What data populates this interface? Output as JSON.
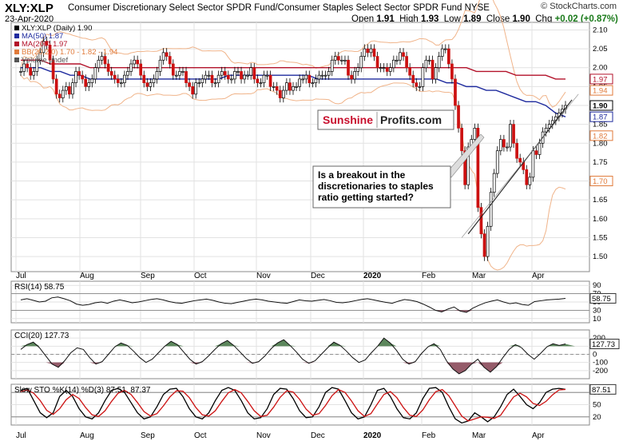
{
  "header": {
    "symbol": "XLY:XLP",
    "full_name": "Consumer Discretionary Select Sector SPDR Fund/Consumer Staples Select Sector SPDR Fund NYSE",
    "watermark": "© StockCharts.com",
    "date": "23-Apr-2020",
    "ohlc": {
      "open_label": "Open",
      "open": "1.91",
      "high_label": "High",
      "high": "1.93",
      "low_label": "Low",
      "low": "1.89",
      "close_label": "Close",
      "close": "1.90",
      "chg_label": "Chg",
      "chg": "+0.02 (+0.87%)",
      "chg_color": "#1a7a1a"
    }
  },
  "brand": {
    "part1": "Sunshine",
    "part2": "Profits.com",
    "part1_color": "#c8102e",
    "part2_color": "#222222"
  },
  "annotation": {
    "lines": [
      "Is a breakout in the",
      "discretionaries to staples",
      "ratio getting started?"
    ]
  },
  "chart_data": [
    {
      "type": "candlestick",
      "panel": "price",
      "legend": [
        {
          "text": "XLY:XLP (Daily) 1.90",
          "color": "#000000"
        },
        {
          "text": "MA(50) 1.87",
          "color": "#1f2b9e"
        },
        {
          "text": "MA(200) 1.97",
          "color": "#b3122a"
        },
        {
          "text": "BB(20,2.0) 1.70 - 1.82 - 1.94",
          "color": "#e07a3a"
        },
        {
          "text": "Volume undef",
          "color": "#555555"
        }
      ],
      "x_labels": [
        "Jul",
        "Aug",
        "Sep",
        "Oct",
        "Nov",
        "Dec",
        "2020",
        "Feb",
        "Mar",
        "Apr"
      ],
      "y_ticks": [
        "2.10",
        "2.05",
        "2.00",
        "1.95",
        "1.90",
        "1.85",
        "1.80",
        "1.75",
        "1.70",
        "1.65",
        "1.60",
        "1.55",
        "1.50"
      ],
      "ylim": [
        1.46,
        2.12
      ],
      "value_tags": [
        {
          "value": 1.97,
          "label": "1.97",
          "color": "#b3122a"
        },
        {
          "value": 1.94,
          "label": "1.94",
          "color": "#e07a3a"
        },
        {
          "value": 1.9,
          "label": "1.90",
          "color": "#000000"
        },
        {
          "value": 1.87,
          "label": "1.87",
          "color": "#1f2b9e"
        },
        {
          "value": 1.82,
          "label": "1.82",
          "color": "#e07a3a"
        },
        {
          "value": 1.7,
          "label": "1.70",
          "color": "#e07a3a"
        }
      ],
      "up_color": "#000000",
      "down_color": "#cc1111",
      "wick_color": "#000000",
      "grid": true,
      "closes": [
        1.99,
        2.01,
        2.0,
        1.98,
        1.99,
        2.02,
        2.04,
        2.07,
        2.06,
        2.02,
        1.97,
        1.93,
        1.92,
        1.94,
        1.95,
        1.93,
        1.96,
        1.99,
        1.98,
        1.97,
        1.95,
        1.96,
        1.97,
        2.0,
        2.02,
        2.03,
        2.01,
        1.99,
        1.98,
        1.97,
        1.96,
        1.96,
        1.98,
        1.99,
        2.01,
        2.02,
        2.01,
        1.98,
        1.96,
        1.95,
        1.96,
        1.97,
        1.99,
        2.02,
        2.04,
        2.03,
        2.01,
        1.98,
        1.98,
        1.99,
        1.99,
        1.96,
        1.95,
        1.93,
        1.96,
        1.96,
        1.97,
        1.98,
        1.98,
        1.96,
        1.96,
        1.98,
        1.99,
        1.98,
        1.97,
        1.97,
        1.99,
        1.99,
        1.97,
        1.98,
        1.98,
        2.0,
        1.97,
        1.96,
        1.96,
        1.98,
        1.98,
        1.95,
        1.95,
        1.94,
        1.92,
        1.94,
        1.96,
        1.94,
        1.95,
        1.95,
        1.97,
        1.97,
        1.98,
        1.96,
        1.96,
        1.97,
        1.98,
        1.98,
        1.98,
        1.99,
        2.02,
        2.03,
        2.02,
        2.02,
        2.02,
        1.98,
        1.97,
        1.99,
        2.0,
        2.03,
        2.05,
        2.04,
        2.05,
        2.03,
        2.0,
        2.0,
        2.0,
        1.99,
        2.0,
        2.02,
        2.02,
        2.04,
        2.03,
        2.0,
        1.98,
        1.96,
        1.95,
        1.95,
        2.0,
        2.02,
        2.02,
        1.97,
        2.0,
        2.03,
        2.05,
        2.05,
        2.01,
        1.97,
        1.9,
        1.84,
        1.78,
        1.69,
        1.79,
        1.81,
        1.84,
        1.63,
        1.56,
        1.5,
        1.58,
        1.67,
        1.72,
        1.78,
        1.81,
        1.79,
        1.79,
        1.85,
        1.8,
        1.76,
        1.75,
        1.73,
        1.69,
        1.71,
        1.78,
        1.77,
        1.8,
        1.83,
        1.84,
        1.85,
        1.86,
        1.87,
        1.88,
        1.89,
        1.9
      ],
      "ma50": [
        2.0,
        2.0,
        2.0,
        1.99,
        1.99,
        1.98,
        1.98,
        1.97,
        1.97,
        1.97,
        1.97,
        1.97,
        1.97,
        1.97,
        1.97,
        1.97,
        1.97,
        1.97,
        1.97,
        1.97,
        1.97,
        1.98,
        1.98,
        1.98,
        1.98,
        1.98,
        1.98,
        1.98,
        1.98,
        1.98,
        1.97,
        1.97,
        1.97,
        1.97,
        1.97,
        1.97,
        1.97,
        1.97,
        1.97,
        1.97,
        1.97,
        1.97,
        1.97,
        1.96,
        1.96,
        1.95,
        1.95,
        1.94,
        1.94,
        1.93,
        1.92,
        1.91,
        1.91,
        1.9,
        1.88,
        1.87
      ],
      "ma200": [
        2.02,
        2.02,
        2.02,
        2.01,
        2.01,
        2.01,
        2.01,
        2.0,
        2.0,
        2.0,
        2.0,
        2.0,
        2.0,
        2.0,
        2.0,
        2.0,
        2.0,
        2.0,
        2.0,
        2.0,
        2.0,
        2.0,
        2.0,
        2.0,
        2.0,
        2.0,
        2.0,
        2.0,
        2.0,
        2.0,
        2.0,
        2.0,
        2.0,
        2.0,
        2.0,
        2.0,
        2.0,
        2.0,
        2.0,
        2.0,
        2.0,
        2.0,
        2.0,
        2.0,
        2.0,
        2.0,
        1.99,
        1.99,
        1.99,
        1.99,
        1.98,
        1.98,
        1.98,
        1.98,
        1.97,
        1.97
      ]
    },
    {
      "type": "line",
      "panel": "rsi",
      "label": "RSI(14) 58.75",
      "y_ticks": [
        "90",
        "70",
        "50",
        "30",
        "10"
      ],
      "ylim": [
        0,
        100
      ],
      "value_tag": "58.75",
      "series": [
        {
          "values": [
            55,
            58,
            54,
            50,
            52,
            60,
            62,
            58,
            53,
            45,
            42,
            44,
            48,
            50,
            47,
            52,
            55,
            52,
            48,
            50,
            53,
            56,
            58,
            55,
            51,
            48,
            47,
            50,
            53,
            55,
            57,
            54,
            50,
            47,
            46,
            49,
            52,
            55,
            57,
            55,
            52,
            50,
            48,
            47,
            51,
            55,
            53,
            52,
            54,
            56,
            53,
            49,
            48,
            50,
            53,
            56,
            58,
            55,
            52,
            49,
            47,
            52,
            56,
            54,
            51,
            45,
            38,
            30,
            26,
            33,
            38,
            28,
            25,
            35,
            42,
            48,
            52,
            55,
            50,
            46,
            48,
            44,
            42,
            51,
            53,
            55,
            56,
            57,
            58.75
          ]
        }
      ],
      "fill_below": 30,
      "fill_color": "#8a4a5a"
    },
    {
      "type": "line",
      "panel": "cci",
      "label": "CCI(20) 127.73",
      "y_ticks": [
        "200",
        "100",
        "0",
        "-100",
        "-200"
      ],
      "ylim": [
        -300,
        300
      ],
      "value_tag": "127.73",
      "series": [
        {
          "values": [
            60,
            120,
            150,
            80,
            -20,
            -120,
            -160,
            -80,
            20,
            80,
            60,
            -40,
            -120,
            -90,
            0,
            90,
            140,
            110,
            40,
            -40,
            -100,
            -60,
            20,
            100,
            160,
            120,
            30,
            -60,
            -120,
            -90,
            -20,
            60,
            130,
            170,
            110,
            30,
            -50,
            -110,
            -90,
            -20,
            70,
            140,
            180,
            110,
            30,
            -60,
            -110,
            -80,
            0,
            80,
            150,
            110,
            40,
            -40,
            -100,
            -70,
            20,
            100,
            200,
            140,
            50,
            -60,
            -120,
            -90,
            10,
            90,
            130,
            60,
            -80,
            -180,
            -240,
            -200,
            -120,
            -60,
            -160,
            -220,
            -150,
            -40,
            60,
            120,
            80,
            0,
            -60,
            10,
            90,
            130,
            110,
            127.73
          ]
        }
      ],
      "over_fill": "#4a7a4a",
      "under_fill": "#8a4a5a"
    },
    {
      "type": "line",
      "panel": "stochastic",
      "label": "Slow STO %K(14) %D(3) 87.51, 87.37",
      "y_ticks": [
        "80",
        "50",
        "20"
      ],
      "ylim": [
        0,
        100
      ],
      "value_tag": "87.51",
      "series": [
        {
          "name": "%K",
          "color": "#000000",
          "values": [
            85,
            90,
            60,
            30,
            18,
            30,
            70,
            85,
            70,
            40,
            20,
            15,
            30,
            60,
            85,
            90,
            80,
            55,
            30,
            15,
            20,
            45,
            75,
            88,
            90,
            70,
            40,
            20,
            15,
            30,
            60,
            85,
            92,
            85,
            60,
            30,
            15,
            18,
            40,
            75,
            90,
            88,
            65,
            35,
            18,
            20,
            45,
            80,
            92,
            88,
            60,
            30,
            15,
            20,
            50,
            85,
            90,
            70,
            40,
            18,
            15,
            30,
            65,
            90,
            92,
            80,
            45,
            15,
            5,
            10,
            30,
            20,
            8,
            20,
            45,
            75,
            88,
            70,
            50,
            40,
            55,
            80,
            88,
            90,
            87.51
          ]
        },
        {
          "name": "%D",
          "color": "#cc1111",
          "values": [
            82,
            86,
            78,
            60,
            36,
            26,
            40,
            62,
            75,
            65,
            43,
            25,
            21,
            35,
            58,
            78,
            85,
            75,
            55,
            33,
            22,
            28,
            47,
            69,
            84,
            83,
            67,
            43,
            25,
            22,
            35,
            58,
            79,
            87,
            79,
            58,
            35,
            21,
            24,
            44,
            68,
            84,
            81,
            63,
            39,
            24,
            28,
            48,
            72,
            87,
            80,
            59,
            35,
            21,
            28,
            52,
            75,
            82,
            67,
            43,
            24,
            21,
            37,
            62,
            82,
            87,
            72,
            47,
            22,
            10,
            15,
            20,
            19,
            16,
            24,
            47,
            69,
            78,
            69,
            53,
            48,
            58,
            74,
            86,
            87.37
          ]
        }
      ],
      "fill_above": 80,
      "fill_below": 20
    }
  ]
}
